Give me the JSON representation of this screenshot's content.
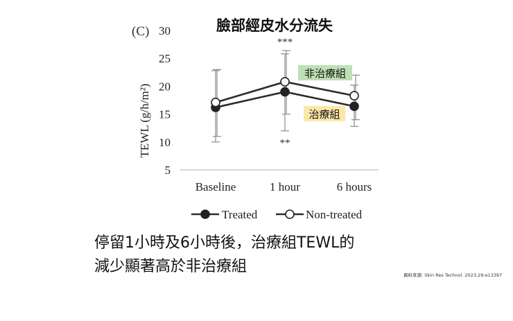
{
  "chart_data": {
    "type": "line",
    "title": "臉部經皮水分流失",
    "panel_label": "(C)",
    "ylabel": "TEWL (g/h/m²)",
    "xlabel": "",
    "ylim": [
      5,
      30
    ],
    "yticks": [
      5,
      10,
      15,
      20,
      25,
      30
    ],
    "categories": [
      "Baseline",
      "1 hour",
      "6 hours"
    ],
    "grid": false,
    "legend_placement": "bottom",
    "series": [
      {
        "name": "Treated",
        "marker": "filled-circle",
        "values": [
          16.2,
          19.0,
          16.4
        ],
        "error_high": [
          22.8,
          25.8,
          20.2
        ],
        "error_low": [
          10.0,
          12.0,
          12.8
        ],
        "callout": "治療組",
        "callout_color": "#fbe7a6"
      },
      {
        "name": "Non-treated",
        "marker": "open-circle",
        "values": [
          17.1,
          20.8,
          18.3
        ],
        "error_high": [
          23.0,
          26.4,
          22.0
        ],
        "error_low": [
          11.0,
          15.0,
          14.0
        ],
        "callout": "非治療組",
        "callout_color": "#bfe0b4"
      }
    ],
    "annotations": [
      {
        "text": "***",
        "category": "1 hour",
        "position": "above"
      },
      {
        "text": "**",
        "category": "1 hour",
        "position": "below"
      }
    ],
    "line_color": "#2b2b2b",
    "error_bar_color": "#8a8a8a"
  },
  "caption": {
    "line1": "停留1小時及6小時後，治療組TEWL的",
    "line2": "減少顯著高於非治療組"
  },
  "source": "資料來源: Skin Res Technol. 2023;29:e13397"
}
